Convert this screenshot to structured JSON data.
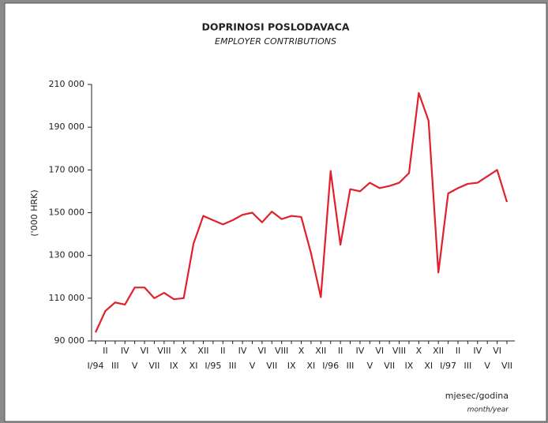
{
  "chart_data": {
    "type": "line",
    "title": "DOPRINOSI POSLODAVACA",
    "subtitle": "EMPLOYER CONTRIBUTIONS",
    "y_label": "('000 HRK)",
    "x_label": "mjesec/godina",
    "x_label_en": "month/year",
    "categories": [
      "I/94",
      "II",
      "III",
      "IV",
      "V",
      "VI",
      "VII",
      "VIII",
      "IX",
      "X",
      "XI",
      "XII",
      "I/95",
      "II",
      "III",
      "IV",
      "V",
      "VI",
      "VII",
      "VIII",
      "IX",
      "X",
      "XI",
      "XII",
      "I/96",
      "II",
      "III",
      "IV",
      "V",
      "VI",
      "VII",
      "VIII",
      "IX",
      "X",
      "XI",
      "XII",
      "I/97",
      "II",
      "III",
      "IV",
      "V",
      "VI",
      "VII"
    ],
    "series": [
      {
        "name": "Employer contributions",
        "color": "#e0202a",
        "values": [
          94000,
          104000,
          108000,
          107000,
          115000,
          115000,
          110000,
          112500,
          109500,
          110000,
          135500,
          148500,
          146500,
          144500,
          146500,
          149000,
          150000,
          145500,
          150500,
          147000,
          148500,
          148000,
          131000,
          110500,
          169500,
          135000,
          161000,
          160000,
          164000,
          161500,
          162500,
          164000,
          168500,
          206000,
          193000,
          122000,
          159000,
          161500,
          163500,
          164000,
          167000,
          170000,
          155000
        ]
      }
    ],
    "ylim": [
      90000,
      210000
    ],
    "yticks": [
      {
        "value": 90000,
        "label": "90 000"
      },
      {
        "value": 110000,
        "label": "110 000"
      },
      {
        "value": 130000,
        "label": "130 000"
      },
      {
        "value": 150000,
        "label": "150 000"
      },
      {
        "value": 170000,
        "label": "170 000"
      },
      {
        "value": 190000,
        "label": "190 000"
      },
      {
        "value": 210000,
        "label": "210 000"
      }
    ]
  }
}
